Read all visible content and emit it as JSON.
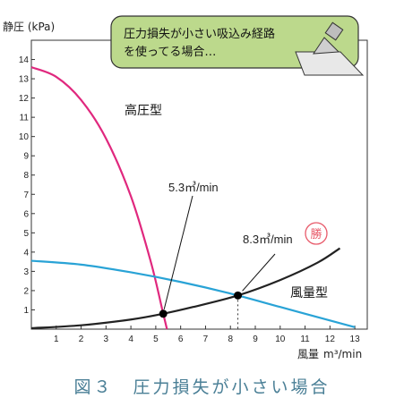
{
  "chart_data": {
    "type": "line",
    "ylabel": "静圧 (kPa)",
    "xlabel": "風量",
    "xunit": "m³/min",
    "xlim": [
      0,
      13.5
    ],
    "ylim": [
      0,
      15
    ],
    "xticks": [
      1,
      2,
      3,
      4,
      5,
      6,
      7,
      8,
      9,
      10,
      11,
      12,
      13
    ],
    "yticks": [
      1,
      2,
      3,
      4,
      5,
      6,
      7,
      8,
      9,
      10,
      11,
      12,
      13,
      14
    ],
    "grid": false,
    "series": [
      {
        "name": "高圧型",
        "color": "#e0287e",
        "x": [
          0,
          1,
          2,
          3,
          4,
          4.8,
          5.3,
          5.45
        ],
        "y": [
          13.6,
          13.1,
          11.9,
          9.9,
          6.9,
          3.5,
          0.8,
          0
        ]
      },
      {
        "name": "風量型",
        "color": "#222222",
        "x": [
          0,
          2,
          4,
          5.3,
          6.5,
          8.3,
          10,
          11.5,
          12.4
        ],
        "y": [
          0.05,
          0.2,
          0.5,
          0.8,
          1.15,
          1.75,
          2.55,
          3.45,
          4.2
        ]
      },
      {
        "name": "",
        "color": "#29a3d6",
        "x": [
          0,
          2,
          4,
          6,
          8,
          10,
          12,
          13
        ],
        "y": [
          3.55,
          3.35,
          2.95,
          2.45,
          1.85,
          1.15,
          0.45,
          0.1
        ]
      }
    ],
    "points": [
      {
        "x": 5.3,
        "y": 0.8,
        "label": "5.3㎥/min"
      },
      {
        "x": 8.3,
        "y": 1.75,
        "label": "8.3㎥/min"
      }
    ],
    "callout_lines": [
      "圧力損失が小さい吸込み経路",
      "を使ってる場合…"
    ],
    "stamp_text": "勝"
  },
  "caption": "図３　圧力損失が小さい場合"
}
